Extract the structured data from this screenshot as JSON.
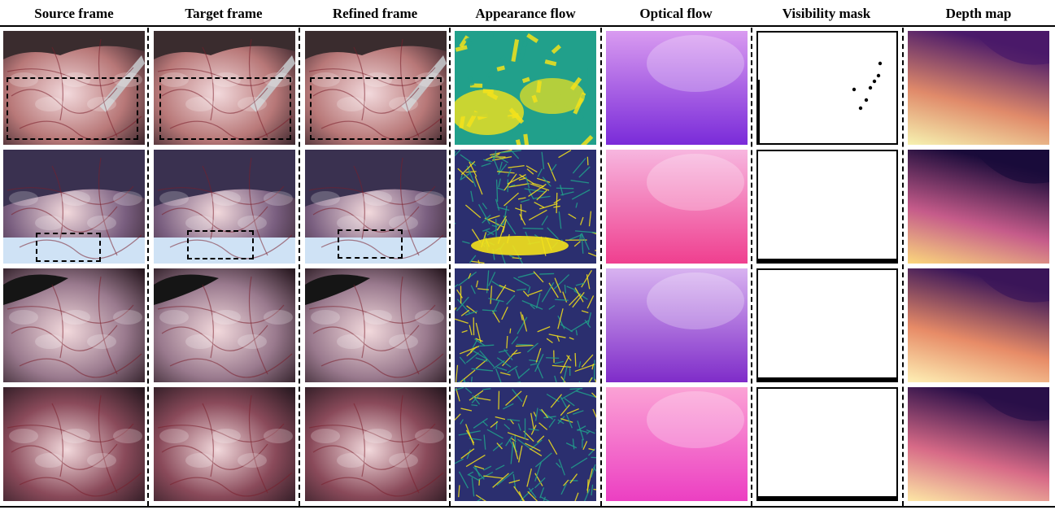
{
  "figure": {
    "columns": [
      "Source frame",
      "Target frame",
      "Refined frame",
      "Appearance flow",
      "Optical flow",
      "Visibility mask",
      "Depth map"
    ],
    "rows": [
      {
        "tissue": "#b87878",
        "optical": [
          "#d99bf0",
          "#7a2bd9"
        ],
        "depth": [
          "#f6f2b0",
          "#e08a6a",
          "#4a1a6a"
        ]
      },
      {
        "tissue": "#7a5f80",
        "optical": [
          "#f7b6df",
          "#ef3f8f"
        ],
        "depth": [
          "#fbd77c",
          "#c55b8a",
          "#1a0b3a"
        ]
      },
      {
        "tissue": "#9a7a8e",
        "optical": [
          "#d8b2f0",
          "#7f2cc9"
        ],
        "depth": [
          "#fef0b5",
          "#e78b67",
          "#3a1659"
        ]
      },
      {
        "tissue": "#8a4a5a",
        "optical": [
          "#fba2d5",
          "#ec3fc2"
        ],
        "depth": [
          "#fde7a5",
          "#d76a87",
          "#2a0f48"
        ]
      }
    ],
    "colors": {
      "line": "#000000",
      "appearance_low": "#2b2f6f",
      "appearance_mid": "#21a08b",
      "appearance_high": "#f4e21b",
      "mask_bg": "#ffffff"
    }
  }
}
